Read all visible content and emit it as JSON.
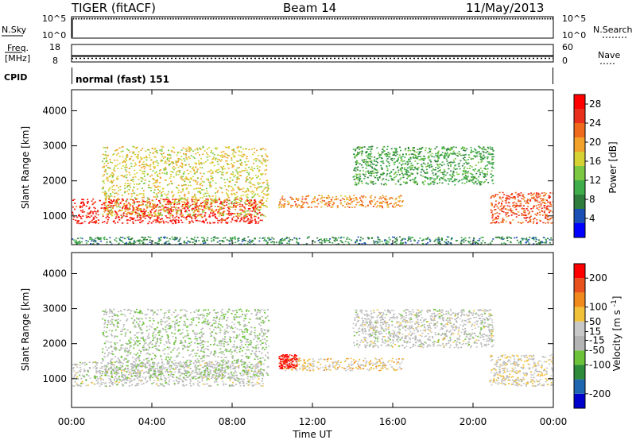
{
  "header": {
    "radar": "TIGER (fitACF)",
    "beam": "Beam 14",
    "date": "11/May/2013"
  },
  "nsky_panel": {
    "left_label": "N.Sky",
    "left_ticks": [
      "10^5",
      "10^0"
    ],
    "right_ticks": [
      "10^5",
      "10^0"
    ],
    "right_label": "N.Search"
  },
  "freq_panel": {
    "left_label_line1": "Freq.",
    "left_label_line2": "[MHz]",
    "left_ticks": [
      "18",
      "8"
    ],
    "right_ticks": [
      "60",
      "0"
    ],
    "right_label": "Nave"
  },
  "cpid_panel": {
    "label": "CPID",
    "value": "normal (fast) 151"
  },
  "colors": {
    "power_scale": [
      "#0000ff",
      "#1a4fb5",
      "#2e7d3c",
      "#3fae4a",
      "#7cc843",
      "#d6d233",
      "#f1a22b",
      "#ef6a1c",
      "#e8301c",
      "#ff0000"
    ],
    "velocity_scale": [
      "#0000cc",
      "#1f66b0",
      "#2e8b3a",
      "#6cc33a",
      "#b4b4b4",
      "#c8c8c8",
      "#f2c13a",
      "#f08a1c",
      "#e8501c",
      "#ff0000"
    ]
  },
  "chart_data": [
    {
      "type": "heatmap",
      "name": "power",
      "ylabel": "Slant Range [km]",
      "xlabel": "Time UT",
      "x_ticks": [
        "00:00",
        "04:00",
        "08:00",
        "12:00",
        "16:00",
        "20:00",
        "00:00"
      ],
      "x_range_hours": [
        0,
        24
      ],
      "y_ticks": [
        1000,
        2000,
        3000,
        4000
      ],
      "y_range_km": [
        180,
        4600
      ],
      "colorbar": {
        "label": "Power [dB]",
        "ticks": [
          4,
          8,
          12,
          16,
          20,
          24,
          28
        ],
        "range": [
          0,
          30
        ]
      },
      "features": [
        {
          "label": "morning E/F echo band",
          "x_hours": [
            0,
            9.5
          ],
          "y_km": [
            800,
            1500
          ],
          "value_db": 27
        },
        {
          "label": "oblique streaks",
          "x_hours": [
            1.5,
            9.8
          ],
          "y_km": [
            1000,
            3000
          ],
          "value_db": 17
        },
        {
          "label": "noon F-region band",
          "x_hours": [
            10.3,
            16.5
          ],
          "y_km": [
            1250,
            1600
          ],
          "value_db": 21
        },
        {
          "label": "afternoon rising band",
          "x_hours": [
            14,
            21
          ],
          "y_km": [
            1900,
            3000
          ],
          "value_db": 10
        },
        {
          "label": "evening echo band",
          "x_hours": [
            20.8,
            24
          ],
          "y_km": [
            800,
            1700
          ],
          "value_db": 24
        },
        {
          "label": "ground scatter floor",
          "x_hours": [
            0,
            24
          ],
          "y_km": [
            200,
            420
          ],
          "value_db": 8
        }
      ]
    },
    {
      "type": "heatmap",
      "name": "velocity",
      "ylabel": "Slant Range [km]",
      "xlabel": "Time UT",
      "x_ticks": [
        "00:00",
        "04:00",
        "08:00",
        "12:00",
        "16:00",
        "20:00",
        "00:00"
      ],
      "x_range_hours": [
        0,
        24
      ],
      "y_ticks": [
        1000,
        2000,
        3000,
        4000
      ],
      "y_range_km": [
        180,
        4600
      ],
      "colorbar": {
        "label": "Velocity [m s^-1]",
        "ticks": [
          200,
          100,
          50,
          15,
          -15,
          -50,
          -100,
          -200
        ],
        "range": [
          -250,
          250
        ]
      },
      "features": [
        {
          "label": "morning echo band",
          "x_hours": [
            0,
            9.5
          ],
          "y_km": [
            800,
            1500
          ],
          "value_ms": 0
        },
        {
          "label": "oblique streaks",
          "x_hours": [
            1.5,
            9.8
          ],
          "y_km": [
            1000,
            3000
          ],
          "value_ms": -40
        },
        {
          "label": "noon band (flow)",
          "x_hours": [
            10.3,
            16.5
          ],
          "y_km": [
            1250,
            1600
          ],
          "value_ms": 60
        },
        {
          "label": "noon band leading edge",
          "x_hours": [
            10.3,
            11.2
          ],
          "y_km": [
            1300,
            1700
          ],
          "value_ms": 220
        },
        {
          "label": "afternoon rising band",
          "x_hours": [
            14,
            21
          ],
          "y_km": [
            1900,
            3000
          ],
          "value_ms": 0
        },
        {
          "label": "evening echo band",
          "x_hours": [
            20.8,
            24
          ],
          "y_km": [
            800,
            1700
          ],
          "value_ms": 30
        }
      ]
    }
  ]
}
